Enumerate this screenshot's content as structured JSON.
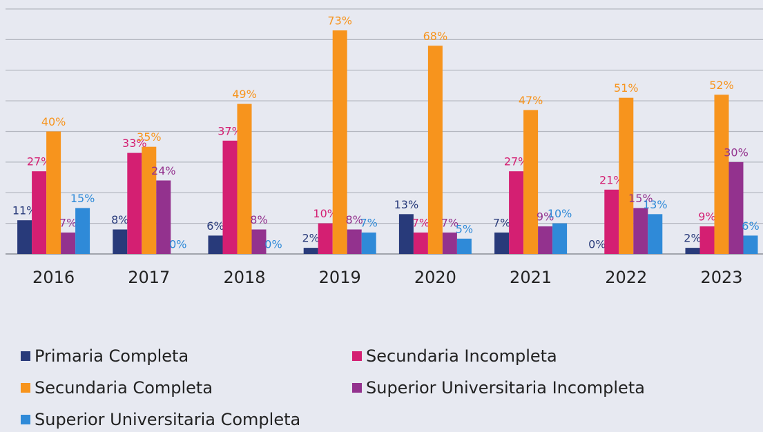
{
  "chart_data": {
    "type": "bar",
    "categories": [
      "2016",
      "2017",
      "2018",
      "2019",
      "2020",
      "2021",
      "2022",
      "2023"
    ],
    "series": [
      {
        "name": "Primaria Completa",
        "color": "#283a7a",
        "values": [
          11,
          8,
          6,
          2,
          13,
          7,
          0,
          2
        ],
        "value_labels": [
          "11%",
          "8%",
          "6%",
          "2%",
          "13%",
          "7%",
          "0%",
          "2%"
        ]
      },
      {
        "name": "Secundaria Incompleta",
        "color": "#d41f72",
        "values": [
          27,
          33,
          37,
          10,
          7,
          27,
          21,
          9
        ],
        "value_labels": [
          "27%",
          "33%",
          "37%",
          "10%",
          "7%",
          "27%",
          "21%",
          "9%"
        ]
      },
      {
        "name": "Secundaria Completa",
        "color": "#f7941d",
        "values": [
          40,
          35,
          49,
          73,
          68,
          47,
          51,
          52
        ],
        "value_labels": [
          "40%",
          "35%",
          "49%",
          "73%",
          "68%",
          "47%",
          "51%",
          "52%"
        ]
      },
      {
        "name": "Superior Universitaria Incompleta",
        "color": "#93328e",
        "values": [
          7,
          24,
          8,
          8,
          7,
          9,
          15,
          30
        ],
        "value_labels": [
          "7%",
          "24%",
          "8%",
          "8%",
          "7%",
          "9%",
          "15%",
          "30%"
        ]
      },
      {
        "name": "Superior Universitaria Completa",
        "color": "#2f8ad8",
        "values": [
          15,
          0,
          0,
          7,
          5,
          10,
          13,
          6
        ],
        "value_labels": [
          "15%",
          "0%",
          "0%",
          "7%",
          "5%",
          "10%",
          "13%",
          "6%"
        ]
      }
    ],
    "ylim": [
      0,
      80
    ],
    "yticks": [
      0,
      10,
      20,
      30,
      40,
      50,
      60,
      70,
      80
    ],
    "grid": true
  }
}
